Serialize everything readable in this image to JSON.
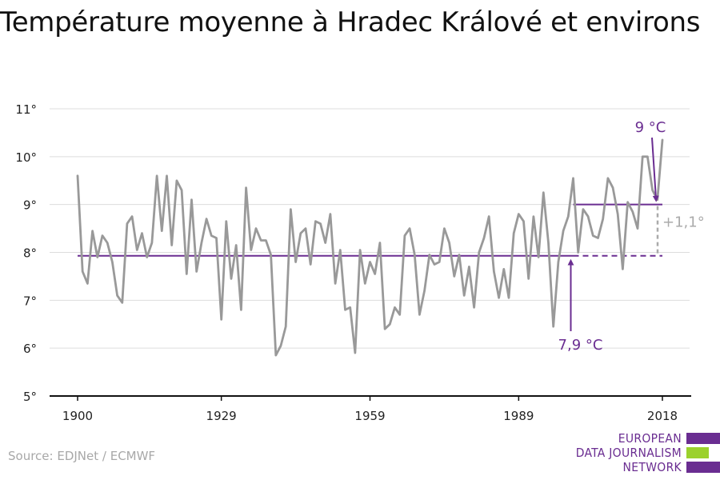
{
  "title": "Température moyenne à Hradec Králové et environs",
  "source": "Source: EDJNet / ECMWF",
  "logo": {
    "lines": [
      "EUROPEAN",
      "DATA JOURNALISM",
      "NETWORK"
    ],
    "colors": {
      "purple": "#6a2d91",
      "green": "#9bd12d"
    }
  },
  "colors": {
    "series": "#999999",
    "accent": "#6a2d91",
    "diff": "#aaaaaa",
    "grid": "#dddddd",
    "axis": "#111111"
  },
  "chart_data": {
    "type": "line",
    "title": "Température moyenne à Hradec Králové et environs",
    "xlabel": "",
    "ylabel": "",
    "xlim": [
      1900,
      2018
    ],
    "ylim": [
      5,
      11
    ],
    "grid": true,
    "x_ticks": [
      1900,
      1929,
      1959,
      1989,
      2018
    ],
    "x_tick_labels": [
      "1900",
      "1929",
      "1959",
      "1989",
      "2018"
    ],
    "y_ticks": [
      5,
      6,
      7,
      8,
      9,
      10,
      11
    ],
    "y_tick_labels": [
      "5°",
      "6°",
      "7°",
      "8°",
      "9°",
      "10°",
      "11°"
    ],
    "series": [
      {
        "x": [
          1900,
          1901,
          1902,
          1903,
          1904,
          1905,
          1906,
          1907,
          1908,
          1909,
          1910,
          1911,
          1912,
          1913,
          1914,
          1915,
          1916,
          1917,
          1918,
          1919,
          1920,
          1921,
          1922,
          1923,
          1924,
          1925,
          1926,
          1927,
          1928,
          1929,
          1930,
          1931,
          1932,
          1933,
          1934,
          1935,
          1936,
          1937,
          1938,
          1939,
          1940,
          1941,
          1942,
          1943,
          1944,
          1945,
          1946,
          1947,
          1948,
          1949,
          1950,
          1951,
          1952,
          1953,
          1954,
          1955,
          1956,
          1957,
          1958,
          1959,
          1960,
          1961,
          1962,
          1963,
          1964,
          1965,
          1966,
          1967,
          1968,
          1969,
          1970,
          1971,
          1972,
          1973,
          1974,
          1975,
          1976,
          1977,
          1978,
          1979,
          1980,
          1981,
          1982,
          1983,
          1984,
          1985,
          1986,
          1987,
          1988,
          1989,
          1990,
          1991,
          1992,
          1993,
          1994,
          1995,
          1996,
          1997,
          1998,
          1999,
          2000,
          2001,
          2002,
          2003,
          2004,
          2005,
          2006,
          2007,
          2008,
          2009,
          2010,
          2011,
          2012,
          2013,
          2014,
          2015,
          2016,
          2017,
          2018
        ],
        "values": [
          9.6,
          7.6,
          7.35,
          8.45,
          7.9,
          8.35,
          8.2,
          7.8,
          7.1,
          6.95,
          8.6,
          8.75,
          8.05,
          8.4,
          7.9,
          8.2,
          9.6,
          8.45,
          9.6,
          8.15,
          9.5,
          9.3,
          7.55,
          9.1,
          7.6,
          8.2,
          8.7,
          8.35,
          8.3,
          6.6,
          8.65,
          7.45,
          8.15,
          6.8,
          9.35,
          8.05,
          8.5,
          8.25,
          8.25,
          7.95,
          5.85,
          6.05,
          6.45,
          8.9,
          7.8,
          8.4,
          8.5,
          7.75,
          8.65,
          8.6,
          8.2,
          8.8,
          7.35,
          8.05,
          6.8,
          6.85,
          5.9,
          8.05,
          7.35,
          7.8,
          7.55,
          8.2,
          6.4,
          6.5,
          6.85,
          6.7,
          8.35,
          8.5,
          7.95,
          6.7,
          7.2,
          7.95,
          7.75,
          7.8,
          8.5,
          8.2,
          7.5,
          7.95,
          7.1,
          7.7,
          6.85,
          8.0,
          8.3,
          8.75,
          7.6,
          7.05,
          7.65,
          7.05,
          8.4,
          8.8,
          8.65,
          7.45,
          8.75,
          7.9,
          9.25,
          8.2,
          6.45,
          7.8,
          8.45,
          8.75,
          9.55,
          8.0,
          8.9,
          8.75,
          8.35,
          8.3,
          8.7,
          9.55,
          9.35,
          8.8,
          7.65,
          9.05,
          8.85,
          8.5,
          10.0,
          10.0,
          9.3,
          9.1,
          10.35
        ]
      }
    ],
    "reference_lines": [
      {
        "label": "7,9 °C",
        "value": 7.93,
        "x_start": 1900,
        "x_end": 2018
      },
      {
        "label": "9 °C",
        "value": 9.0,
        "x_start": 2000,
        "x_end": 2018
      }
    ],
    "difference_label": "+1,1°"
  }
}
